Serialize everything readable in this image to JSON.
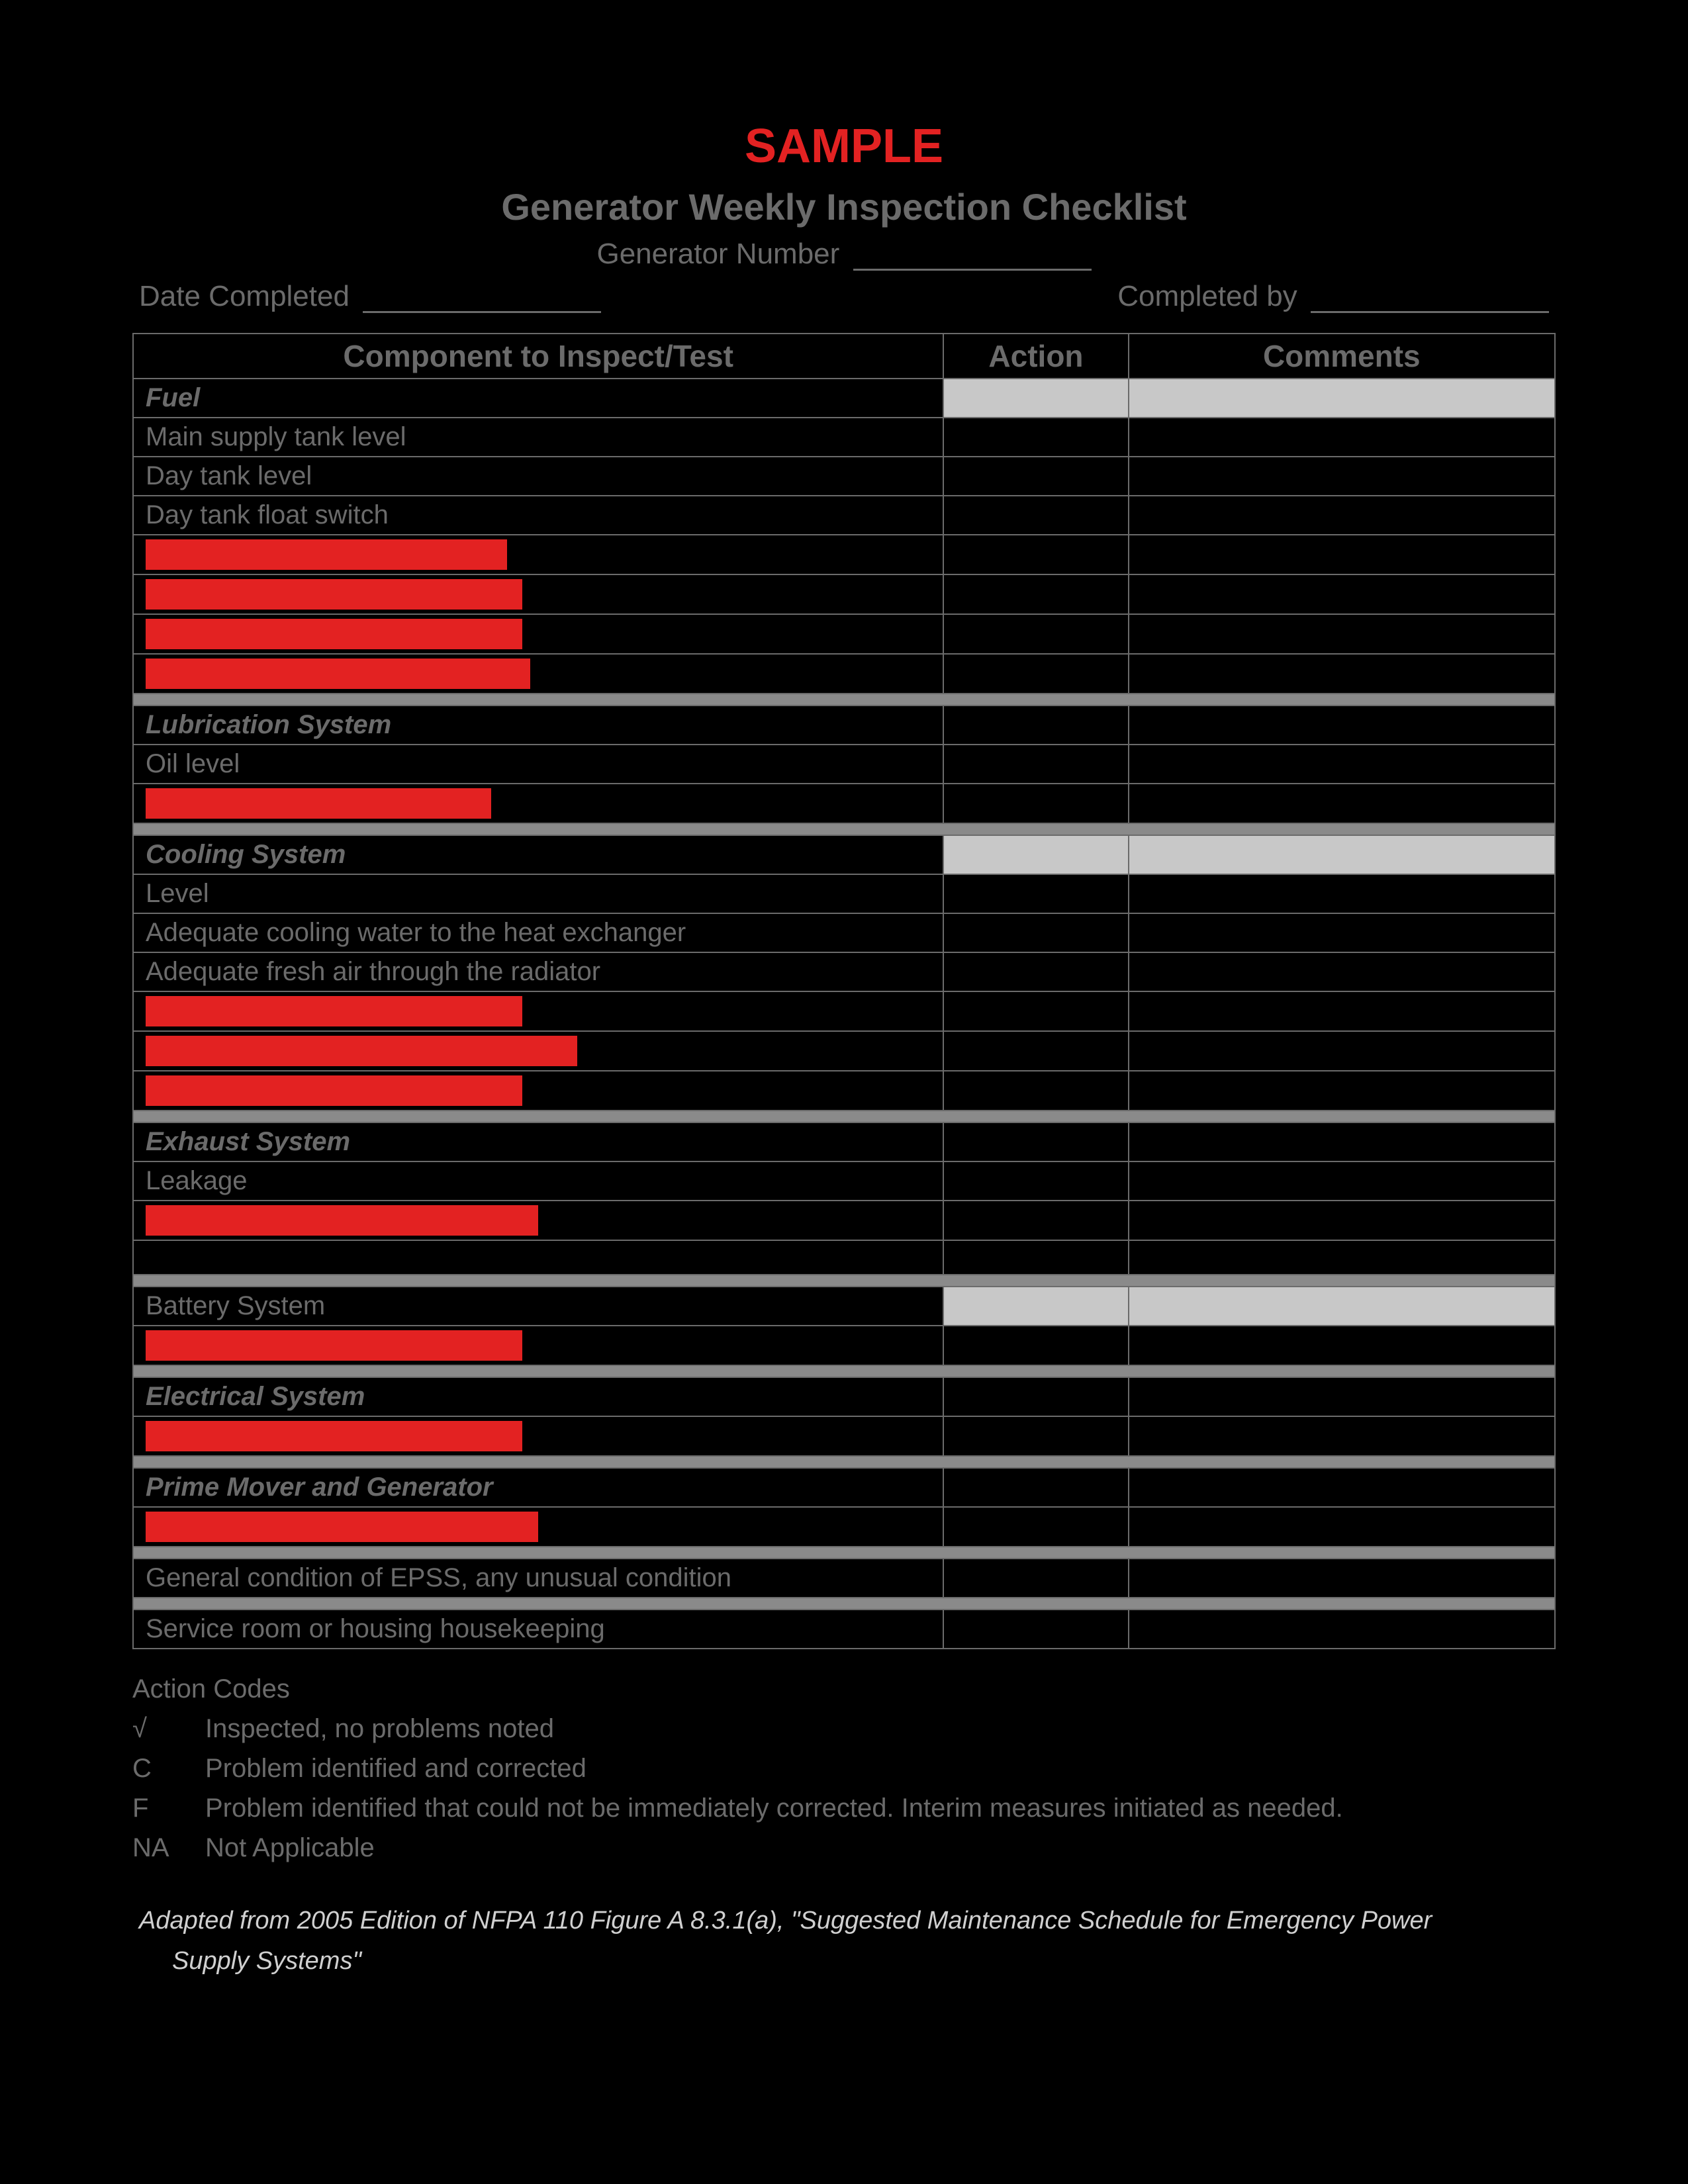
{
  "colors": {
    "background": "#000000",
    "text_muted": "#6b6b6b",
    "accent_red": "#e32222",
    "shaded_cell": "#c8c8c8",
    "separator": "#8a8a8a",
    "citation_text": "#d0d0d0",
    "border": "#6b6b6b"
  },
  "header": {
    "sample": "SAMPLE",
    "title": "Generator Weekly Inspection Checklist",
    "generator_number_label": "Generator Number",
    "date_completed_label": "Date Completed",
    "completed_by_label": "Completed by"
  },
  "columns": {
    "component": "Component to Inspect/Test",
    "action": "Action",
    "comments": "Comments"
  },
  "column_widths_pct": {
    "component": 57,
    "action": 13,
    "comments": 30
  },
  "sections": [
    {
      "title": "Fuel",
      "italic": true,
      "shaded_action_comments": true,
      "rows": [
        {
          "type": "item",
          "text": "Main supply tank level"
        },
        {
          "type": "item",
          "text": "Day tank level"
        },
        {
          "type": "item",
          "text": "Day tank float switch"
        },
        {
          "type": "redact",
          "bar_width_pct": 46
        },
        {
          "type": "redact",
          "bar_width_pct": 48
        },
        {
          "type": "redact",
          "bar_width_pct": 48
        },
        {
          "type": "redact",
          "bar_width_pct": 49
        }
      ]
    },
    {
      "title": "Lubrication System",
      "italic": true,
      "shaded_action_comments": false,
      "rows": [
        {
          "type": "item",
          "text": "Oil level"
        },
        {
          "type": "redact",
          "bar_width_pct": 44
        }
      ]
    },
    {
      "title": "Cooling System",
      "italic": true,
      "shaded_action_comments": true,
      "rows": [
        {
          "type": "item",
          "text": "Level"
        },
        {
          "type": "item",
          "text": "Adequate cooling water to the heat exchanger"
        },
        {
          "type": "item",
          "text": "Adequate fresh air through the radiator"
        },
        {
          "type": "redact",
          "bar_width_pct": 48
        },
        {
          "type": "redact",
          "bar_width_pct": 55
        },
        {
          "type": "redact",
          "bar_width_pct": 48
        }
      ]
    },
    {
      "title": "Exhaust System",
      "italic": true,
      "shaded_action_comments": false,
      "rows": [
        {
          "type": "item",
          "text": "Leakage"
        },
        {
          "type": "redact",
          "bar_width_pct": 50
        },
        {
          "type": "empty"
        }
      ]
    },
    {
      "title": "Battery System",
      "italic": false,
      "shaded_action_comments": true,
      "rows": [
        {
          "type": "redact",
          "bar_width_pct": 48
        }
      ]
    },
    {
      "title": "Electrical System",
      "italic": true,
      "shaded_action_comments": false,
      "rows": [
        {
          "type": "redact",
          "bar_width_pct": 48
        }
      ]
    },
    {
      "title": "Prime Mover and Generator",
      "italic": true,
      "shaded_action_comments": false,
      "rows": [
        {
          "type": "redact",
          "bar_width_pct": 50
        }
      ]
    }
  ],
  "final_rows": [
    "General condition of EPSS, any unusual condition",
    "Service room or housing housekeeping"
  ],
  "action_codes": {
    "title": "Action Codes",
    "codes": [
      {
        "symbol": "√",
        "desc": "Inspected, no problems noted"
      },
      {
        "symbol": "C",
        "desc": "Problem identified and corrected"
      },
      {
        "symbol": "F",
        "desc": "Problem identified that could not be immediately corrected. Interim measures initiated as needed."
      },
      {
        "symbol": "NA",
        "desc": "Not Applicable"
      }
    ]
  },
  "citation": {
    "line1": "Adapted from 2005 Edition of NFPA 110 Figure A 8.3.1(a), \"Suggested Maintenance Schedule for Emergency Power",
    "line2": "Supply Systems\""
  }
}
